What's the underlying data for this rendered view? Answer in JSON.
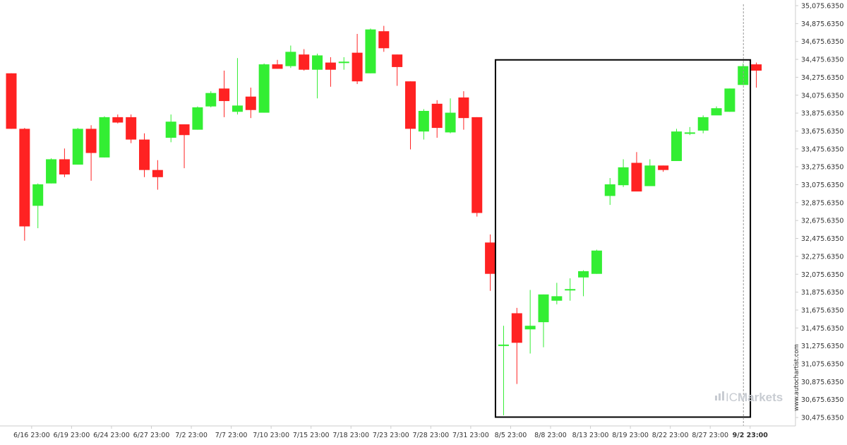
{
  "chart_data": {
    "type": "candlestick",
    "title": "",
    "xlabel": "",
    "ylabel": "",
    "ylim": [
      30400,
      35100
    ],
    "y_ticks": [
      35075.635,
      34875.635,
      34675.635,
      34475.635,
      34275.635,
      34075.635,
      33875.635,
      33675.635,
      33475.635,
      33275.635,
      33075.635,
      32875.635,
      32675.635,
      32475.635,
      32275.635,
      32075.635,
      31875.635,
      31675.635,
      31475.635,
      31275.635,
      31075.635,
      30875.635,
      30675.635,
      30475.635
    ],
    "y_tick_labels": [
      "35,075.6350",
      "34,875.6350",
      "34,675.6350",
      "34,475.6350",
      "34,275.6350",
      "34,075.6350",
      "33,875.6350",
      "33,675.6350",
      "33,475.6350",
      "33,275.6350",
      "33,075.6350",
      "32,875.6350",
      "32,675.6350",
      "32,475.6350",
      "32,275.6350",
      "32,075.6350",
      "31,875.6350",
      "31,675.6350",
      "31,475.6350",
      "31,275.6350",
      "31,075.6350",
      "30,875.6350",
      "30,675.6350",
      "30,475.6350"
    ],
    "x_tick_labels": [
      {
        "label": "6/16 23:00",
        "index": 1
      },
      {
        "label": "6/19 23:00",
        "index": 4
      },
      {
        "label": "6/24 23:00",
        "index": 7
      },
      {
        "label": "6/27 23:00",
        "index": 10
      },
      {
        "label": "7/2 23:00",
        "index": 13
      },
      {
        "label": "7/7 23:00",
        "index": 16
      },
      {
        "label": "7/10 23:00",
        "index": 19
      },
      {
        "label": "7/15 23:00",
        "index": 22
      },
      {
        "label": "7/18 23:00",
        "index": 25
      },
      {
        "label": "7/23 23:00",
        "index": 28
      },
      {
        "label": "7/28 23:00",
        "index": 31
      },
      {
        "label": "7/31 23:00",
        "index": 34
      },
      {
        "label": "8/5 23:00",
        "index": 37
      },
      {
        "label": "8/8 23:00",
        "index": 40
      },
      {
        "label": "8/13 23:00",
        "index": 43
      },
      {
        "label": "8/19 23:00",
        "index": 46
      },
      {
        "label": "8/22 23:00",
        "index": 49
      },
      {
        "label": "8/27 23:00",
        "index": 52
      },
      {
        "label": "9/2 23:00",
        "index": 55,
        "current": true
      }
    ],
    "series": [
      {
        "candles": [
          {
            "o": 34320,
            "h": 34320,
            "l": 33700,
            "c": 33700
          },
          {
            "o": 33700,
            "h": 33710,
            "l": 32450,
            "c": 32610
          },
          {
            "o": 32840,
            "h": 33090,
            "l": 32590,
            "c": 33080
          },
          {
            "o": 33090,
            "h": 33370,
            "l": 33090,
            "c": 33360
          },
          {
            "o": 33360,
            "h": 33480,
            "l": 33160,
            "c": 33190
          },
          {
            "o": 33300,
            "h": 33710,
            "l": 33300,
            "c": 33700
          },
          {
            "o": 33700,
            "h": 33740,
            "l": 33120,
            "c": 33430
          },
          {
            "o": 33380,
            "h": 33840,
            "l": 33380,
            "c": 33830
          },
          {
            "o": 33830,
            "h": 33860,
            "l": 33760,
            "c": 33770
          },
          {
            "o": 33830,
            "h": 33860,
            "l": 33540,
            "c": 33580
          },
          {
            "o": 33580,
            "h": 33650,
            "l": 33160,
            "c": 33240
          },
          {
            "o": 33240,
            "h": 33350,
            "l": 33020,
            "c": 33160
          },
          {
            "o": 33600,
            "h": 33860,
            "l": 33550,
            "c": 33780
          },
          {
            "o": 33750,
            "h": 33750,
            "l": 33260,
            "c": 33630
          },
          {
            "o": 33690,
            "h": 33950,
            "l": 33690,
            "c": 33940
          },
          {
            "o": 33950,
            "h": 34120,
            "l": 33940,
            "c": 34100
          },
          {
            "o": 34150,
            "h": 34350,
            "l": 33830,
            "c": 34010
          },
          {
            "o": 33890,
            "h": 34490,
            "l": 33860,
            "c": 33960
          },
          {
            "o": 34060,
            "h": 34160,
            "l": 33820,
            "c": 33910
          },
          {
            "o": 33880,
            "h": 34430,
            "l": 33880,
            "c": 34420
          },
          {
            "o": 34420,
            "h": 34470,
            "l": 34370,
            "c": 34370
          },
          {
            "o": 34400,
            "h": 34630,
            "l": 34380,
            "c": 34560
          },
          {
            "o": 34530,
            "h": 34590,
            "l": 34350,
            "c": 34360
          },
          {
            "o": 34360,
            "h": 34540,
            "l": 34040,
            "c": 34520
          },
          {
            "o": 34440,
            "h": 34500,
            "l": 34170,
            "c": 34360
          },
          {
            "o": 34450,
            "h": 34500,
            "l": 34360,
            "c": 34450
          },
          {
            "o": 34550,
            "h": 34760,
            "l": 34200,
            "c": 34230
          },
          {
            "o": 34320,
            "h": 34820,
            "l": 34320,
            "c": 34810
          },
          {
            "o": 34790,
            "h": 34850,
            "l": 34560,
            "c": 34600
          },
          {
            "o": 34530,
            "h": 34530,
            "l": 34180,
            "c": 34390
          },
          {
            "o": 34230,
            "h": 34230,
            "l": 33470,
            "c": 33700
          },
          {
            "o": 33670,
            "h": 33920,
            "l": 33580,
            "c": 33900
          },
          {
            "o": 33980,
            "h": 34020,
            "l": 33600,
            "c": 33710
          },
          {
            "o": 33660,
            "h": 34040,
            "l": 33650,
            "c": 33880
          },
          {
            "o": 34050,
            "h": 34120,
            "l": 33690,
            "c": 33820
          },
          {
            "o": 33830,
            "h": 33830,
            "l": 32720,
            "c": 32760
          },
          {
            "o": 32430,
            "h": 32520,
            "l": 31890,
            "c": 32080
          },
          {
            "o": 31290,
            "h": 31500,
            "l": 30500,
            "c": 31290
          },
          {
            "o": 31640,
            "h": 31700,
            "l": 30850,
            "c": 31310
          },
          {
            "o": 31460,
            "h": 31900,
            "l": 31190,
            "c": 31500
          },
          {
            "o": 31540,
            "h": 31850,
            "l": 31260,
            "c": 31850
          },
          {
            "o": 31780,
            "h": 31980,
            "l": 31740,
            "c": 31830
          },
          {
            "o": 31910,
            "h": 32030,
            "l": 31780,
            "c": 31910
          },
          {
            "o": 32040,
            "h": 32120,
            "l": 31830,
            "c": 32110
          },
          {
            "o": 32080,
            "h": 32350,
            "l": 32080,
            "c": 32340
          },
          {
            "o": 32950,
            "h": 33150,
            "l": 32850,
            "c": 33080
          },
          {
            "o": 33070,
            "h": 33360,
            "l": 33050,
            "c": 33270
          },
          {
            "o": 33320,
            "h": 33440,
            "l": 33010,
            "c": 33000
          },
          {
            "o": 33060,
            "h": 33360,
            "l": 33060,
            "c": 33290
          },
          {
            "o": 33290,
            "h": 33290,
            "l": 33220,
            "c": 33240
          },
          {
            "o": 33340,
            "h": 33700,
            "l": 33340,
            "c": 33670
          },
          {
            "o": 33660,
            "h": 33720,
            "l": 33630,
            "c": 33660
          },
          {
            "o": 33680,
            "h": 33850,
            "l": 33650,
            "c": 33830
          },
          {
            "o": 33850,
            "h": 33950,
            "l": 33860,
            "c": 33930
          },
          {
            "o": 33890,
            "h": 34150,
            "l": 33890,
            "c": 34150
          },
          {
            "o": 34190,
            "h": 34430,
            "l": 34190,
            "c": 34400
          },
          {
            "o": 34420,
            "h": 34440,
            "l": 34160,
            "c": 34350
          }
        ]
      }
    ],
    "highlight_box": {
      "start_index": 37,
      "end_index": 56,
      "high": 34470,
      "low": 30480
    },
    "current_index": 55,
    "colors": {
      "up": "#33ee33",
      "down": "#ff2222",
      "axis": "#cccccc",
      "box": "#000000",
      "current_line": "#999999"
    },
    "legend": "none",
    "grid": false
  },
  "watermark": {
    "site": "www.autochartist.com",
    "brand_light": "IC",
    "brand_bold": "Markets"
  }
}
